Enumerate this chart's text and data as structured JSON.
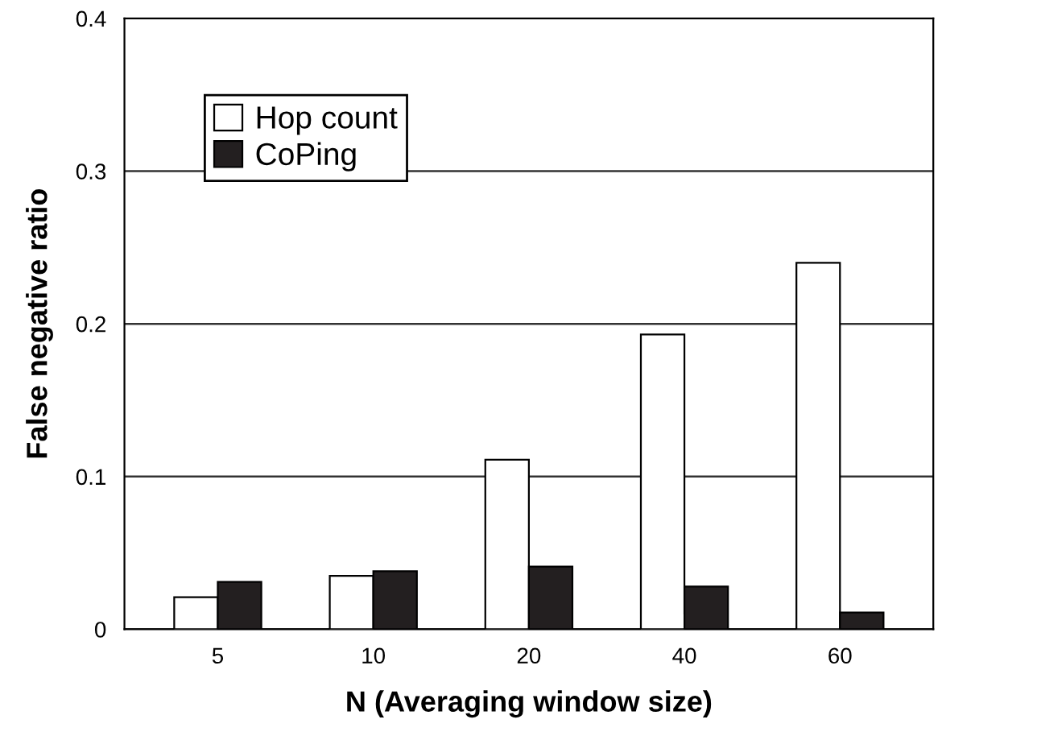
{
  "chart_data": {
    "type": "bar",
    "xlabel": "N (Averaging window size)",
    "ylabel": "False negative ratio",
    "categories": [
      "5",
      "10",
      "20",
      "40",
      "60"
    ],
    "series": [
      {
        "name": "Hop count",
        "color": "#ffffff",
        "values": [
          0.021,
          0.035,
          0.111,
          0.193,
          0.24
        ]
      },
      {
        "name": "CoPing",
        "color": "#231f20",
        "values": [
          0.031,
          0.038,
          0.041,
          0.028,
          0.011
        ]
      }
    ],
    "ylim": [
      0,
      0.4
    ],
    "yticks": [
      0,
      0.1,
      0.2,
      0.3,
      0.4
    ],
    "grid": "y",
    "legend": "top left"
  }
}
